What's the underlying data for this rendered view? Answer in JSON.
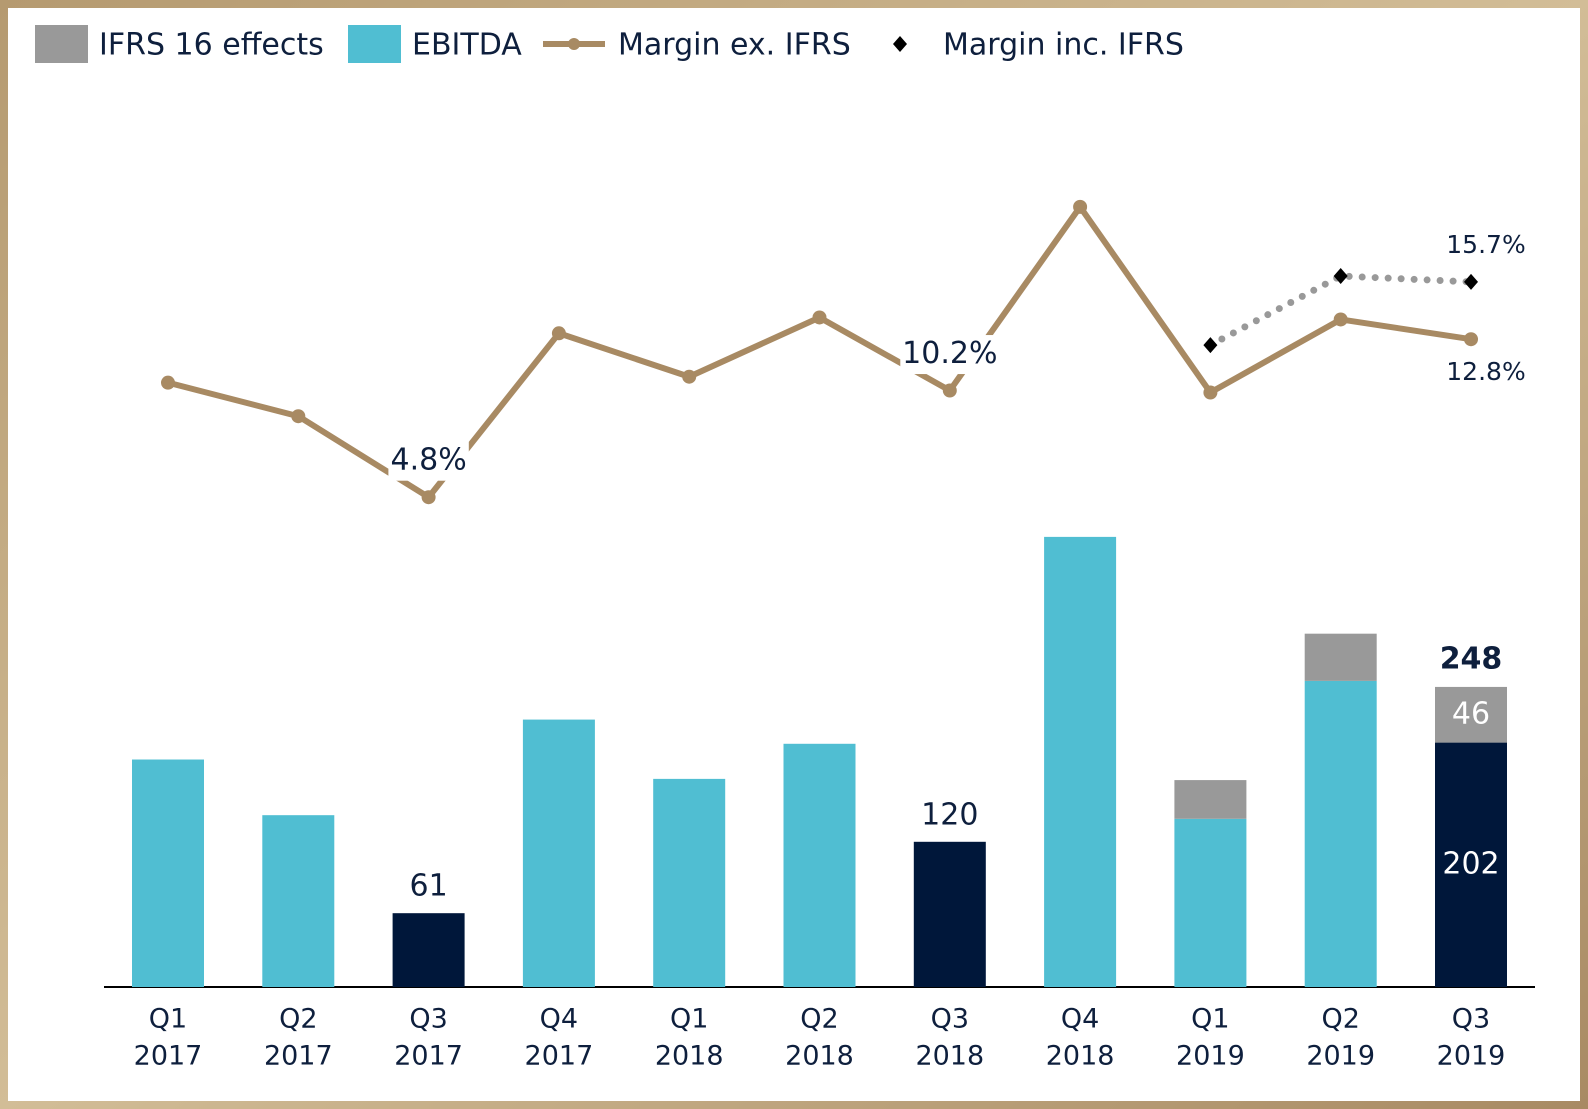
{
  "chart_data": {
    "type": "combo",
    "categories": [
      [
        "Q1",
        "2017"
      ],
      [
        "Q2",
        "2017"
      ],
      [
        "Q3",
        "2017"
      ],
      [
        "Q4",
        "2017"
      ],
      [
        "Q1",
        "2018"
      ],
      [
        "Q2",
        "2018"
      ],
      [
        "Q3",
        "2018"
      ],
      [
        "Q4",
        "2018"
      ],
      [
        "Q1",
        "2019"
      ],
      [
        "Q2",
        "2019"
      ],
      [
        "Q3",
        "2019"
      ]
    ],
    "series": [
      {
        "name": "IFRS 16 effects",
        "type": "bar",
        "color": "#999999",
        "values": [
          null,
          null,
          null,
          null,
          null,
          null,
          null,
          null,
          32,
          39,
          46
        ],
        "labeled": [
          10
        ]
      },
      {
        "name": "EBITDA",
        "type": "bar",
        "color": "#50bed2",
        "colors": [
          "#50bed2",
          "#50bed2",
          "#00173a",
          "#50bed2",
          "#50bed2",
          "#50bed2",
          "#00173a",
          "#50bed2",
          "#50bed2",
          "#50bed2",
          "#00173a"
        ],
        "values": [
          188,
          142,
          61,
          221,
          172,
          201,
          120,
          372,
          139,
          253,
          202
        ],
        "labeled": [
          2,
          6,
          10
        ]
      },
      {
        "name": "Margin ex. IFRS",
        "type": "line",
        "color": "#a88a63",
        "values": [
          10.6,
          8.9,
          4.8,
          13.1,
          10.9,
          13.9,
          10.2,
          19.5,
          10.1,
          13.8,
          12.8
        ],
        "value_labels": [
          null,
          null,
          "4.8%",
          null,
          null,
          null,
          "10.2%",
          null,
          null,
          null,
          "12.8%"
        ]
      },
      {
        "name": "Margin inc. IFRS",
        "type": "dotted",
        "color": "#000000",
        "values": [
          null,
          null,
          null,
          null,
          null,
          null,
          null,
          null,
          12.5,
          16.0,
          15.7
        ],
        "value_labels": [
          null,
          null,
          null,
          null,
          null,
          null,
          null,
          null,
          null,
          null,
          "15.7%"
        ]
      }
    ],
    "stack_total": {
      "index": 10,
      "value": 248
    }
  }
}
